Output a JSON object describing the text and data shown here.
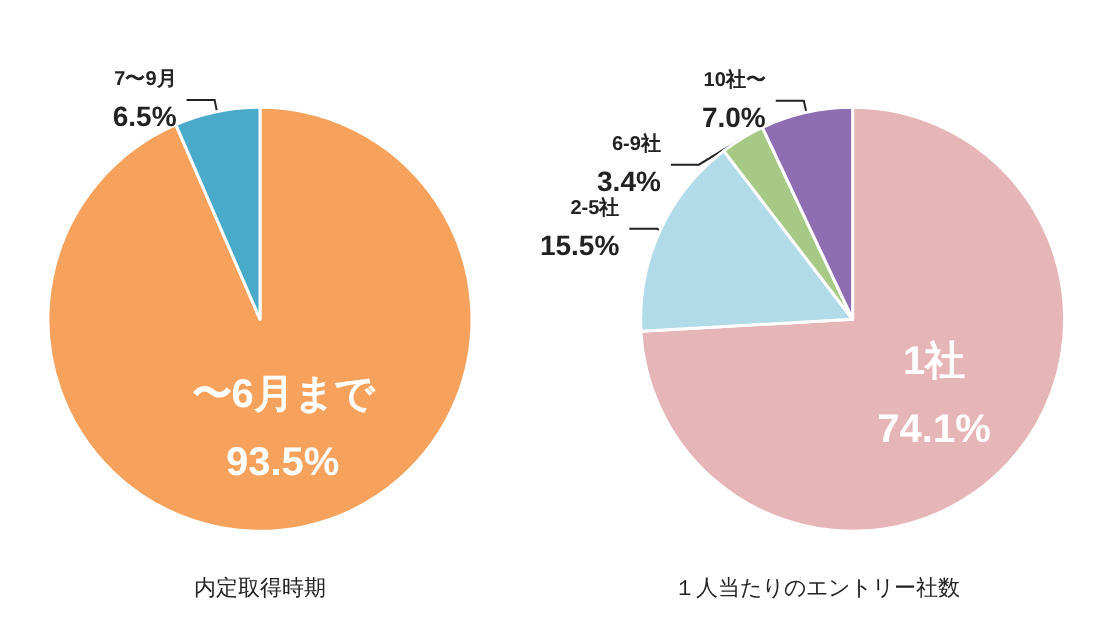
{
  "chart_data": [
    {
      "type": "pie",
      "title": "内定取得時期",
      "categories": [
        "〜6月まで",
        "7〜9月"
      ],
      "values": [
        93.5,
        6.5
      ],
      "colors": [
        "#f7a25c",
        "#4aaac9"
      ],
      "value_labels": [
        "93.5%",
        "6.5%"
      ]
    },
    {
      "type": "pie",
      "title": "１人当たりのエントリー社数",
      "categories": [
        "1社",
        "2-5社",
        "6-9社",
        "10社〜"
      ],
      "values": [
        74.1,
        15.5,
        3.4,
        7.0
      ],
      "colors": [
        "#e6b5b8",
        "#b1dbe8",
        "#a6c985",
        "#8f6db2"
      ],
      "value_labels": [
        "74.1%",
        "15.5%",
        "3.4%",
        "7.0%"
      ]
    }
  ]
}
